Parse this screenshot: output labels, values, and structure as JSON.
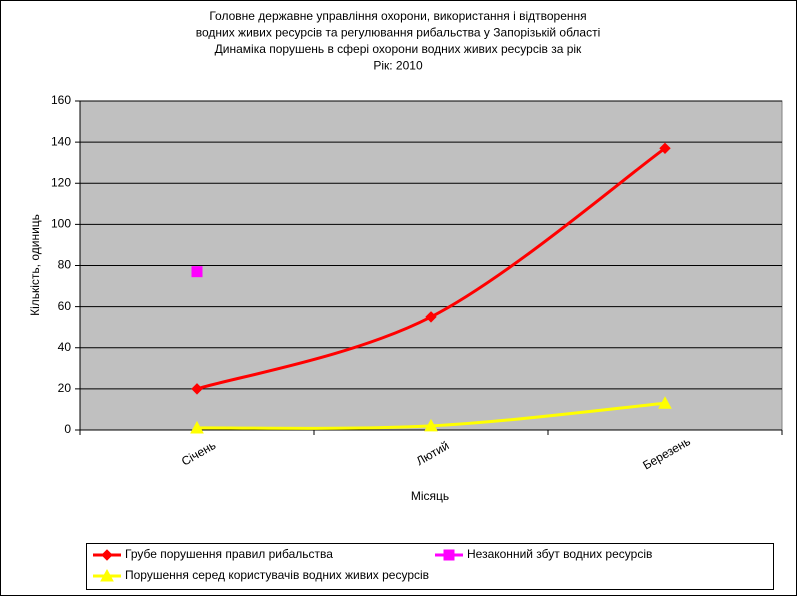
{
  "chart_data": {
    "type": "line",
    "title": [
      "Головне державне управління охорони, використання і відтворення",
      "водних живих ресурсів та регулювання рибальства у Запорізькій області",
      "Динаміка порушень в сфері охорони водних живих ресурсів за рік",
      "Рік: 2010"
    ],
    "x_label": "Місяць",
    "y_label": "Кількість, одиниць",
    "categories": [
      "Січень",
      "Лютий",
      "Березень"
    ],
    "ylim": [
      0,
      160
    ],
    "yticks": [
      0,
      20,
      40,
      60,
      80,
      100,
      120,
      140,
      160
    ],
    "grid": true,
    "plot_background": "#c0c0c0",
    "legend": "bottom",
    "series": [
      {
        "name": "Грубе порушення правил рибальства",
        "color": "#ff0000",
        "marker": "diamond",
        "values": [
          20,
          55,
          137
        ]
      },
      {
        "name": "Незаконний збут водних ресурсів",
        "color": "#ff00ff",
        "marker": "square",
        "values": [
          77,
          null,
          null
        ]
      },
      {
        "name": "Порушення серед користувачів водних живих ресурсів",
        "color": "#ffff00",
        "marker": "triangle",
        "values": [
          1,
          2,
          13
        ]
      }
    ]
  }
}
